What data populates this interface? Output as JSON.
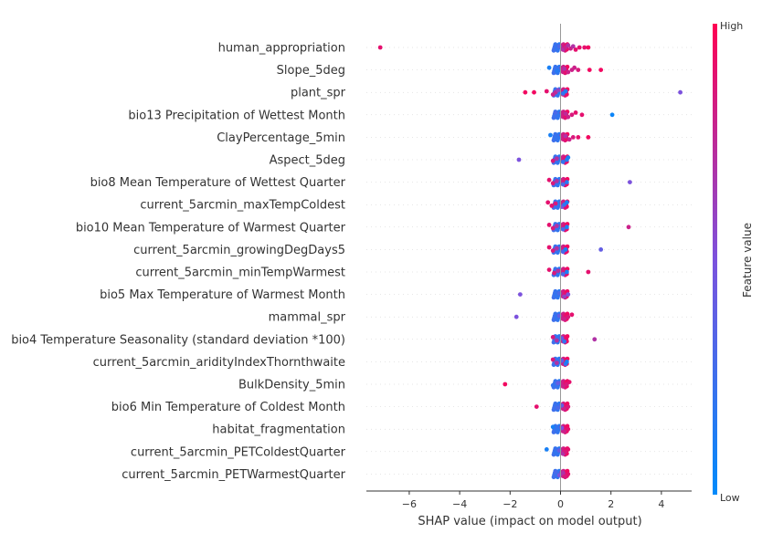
{
  "chart_data": {
    "type": "scatter",
    "subtype": "shap-beeswarm",
    "xlabel": "SHAP value (impact on model output)",
    "xlim": [
      -7.7,
      5.2
    ],
    "xticks": [
      -6,
      -4,
      -2,
      0,
      2,
      4
    ],
    "xtick_labels": [
      "−6",
      "−4",
      "−2",
      "0",
      "2",
      "4"
    ],
    "grid": false,
    "colorbar": {
      "label": "Feature value",
      "high_label": "High",
      "low_label": "Low",
      "low_color": "#008bfb",
      "mid_color": "#7c52dd",
      "high_color": "#ff0052",
      "placement": "right"
    },
    "features": [
      {
        "name": "human_appropriation",
        "points": [
          [
            -7.15,
            0.9
          ],
          [
            -0.15,
            0.2
          ],
          [
            -0.05,
            0.3
          ],
          [
            0.1,
            0.7
          ],
          [
            0.2,
            0.8
          ],
          [
            0.3,
            0.7
          ],
          [
            0.4,
            0.8
          ],
          [
            0.5,
            0.7
          ],
          [
            0.6,
            0.9
          ],
          [
            0.75,
            0.9
          ],
          [
            0.95,
            0.9
          ],
          [
            1.1,
            0.95
          ]
        ]
      },
      {
        "name": "Slope_5deg",
        "points": [
          [
            -0.45,
            0.1
          ],
          [
            -0.15,
            0.15
          ],
          [
            0.15,
            0.7
          ],
          [
            0.3,
            0.8
          ],
          [
            0.45,
            0.8
          ],
          [
            0.55,
            0.8
          ],
          [
            0.7,
            0.85
          ],
          [
            1.15,
            0.95
          ],
          [
            1.6,
            0.95
          ]
        ]
      },
      {
        "name": "plant_spr",
        "points": [
          [
            -1.4,
            0.95
          ],
          [
            -1.05,
            0.95
          ],
          [
            -0.55,
            0.9
          ],
          [
            -0.3,
            0.8
          ],
          [
            -0.2,
            0.75
          ],
          [
            -0.1,
            0.6
          ],
          [
            0.1,
            0.2
          ],
          [
            0.2,
            0.15
          ],
          [
            4.75,
            0.5
          ]
        ]
      },
      {
        "name": "bio13 Precipitation of Wettest Month",
        "points": [
          [
            -0.2,
            0.3
          ],
          [
            -0.1,
            0.2
          ],
          [
            0.2,
            0.75
          ],
          [
            0.3,
            0.8
          ],
          [
            0.45,
            0.85
          ],
          [
            0.6,
            0.9
          ],
          [
            0.85,
            0.9
          ],
          [
            2.05,
            0.05
          ]
        ]
      },
      {
        "name": "ClayPercentage_5min",
        "points": [
          [
            -0.4,
            0.1
          ],
          [
            -0.2,
            0.2
          ],
          [
            0.2,
            0.7
          ],
          [
            0.35,
            0.8
          ],
          [
            0.5,
            0.85
          ],
          [
            0.7,
            0.9
          ],
          [
            1.1,
            0.95
          ]
        ]
      },
      {
        "name": "Aspect_5deg",
        "points": [
          [
            -1.65,
            0.5
          ],
          [
            -0.3,
            0.85
          ],
          [
            -0.15,
            0.7
          ],
          [
            0.1,
            0.2
          ],
          [
            0.25,
            0.15
          ],
          [
            0.3,
            0.1
          ]
        ]
      },
      {
        "name": "bio8 Mean Temperature of Wettest Quarter",
        "points": [
          [
            -0.45,
            0.9
          ],
          [
            -0.3,
            0.85
          ],
          [
            -0.15,
            0.7
          ],
          [
            0.1,
            0.3
          ],
          [
            0.25,
            0.15
          ],
          [
            2.75,
            0.5
          ]
        ]
      },
      {
        "name": "current_5arcmin_maxTempColdest",
        "points": [
          [
            -0.5,
            0.9
          ],
          [
            -0.35,
            0.9
          ],
          [
            -0.2,
            0.85
          ],
          [
            0.05,
            0.5
          ],
          [
            0.15,
            0.2
          ],
          [
            0.25,
            0.1
          ]
        ]
      },
      {
        "name": "bio10 Mean Temperature of Warmest Quarter",
        "points": [
          [
            -0.45,
            0.9
          ],
          [
            -0.3,
            0.85
          ],
          [
            -0.15,
            0.7
          ],
          [
            0.1,
            0.3
          ],
          [
            0.25,
            0.1
          ],
          [
            2.7,
            0.8
          ]
        ]
      },
      {
        "name": "current_5arcmin_growingDegDays5",
        "points": [
          [
            -0.45,
            0.9
          ],
          [
            -0.3,
            0.85
          ],
          [
            -0.15,
            0.7
          ],
          [
            0.1,
            0.3
          ],
          [
            0.2,
            0.1
          ],
          [
            1.6,
            0.4
          ]
        ]
      },
      {
        "name": "current_5arcmin_minTempWarmest",
        "points": [
          [
            -0.45,
            0.9
          ],
          [
            -0.25,
            0.85
          ],
          [
            -0.1,
            0.7
          ],
          [
            0.1,
            0.3
          ],
          [
            0.25,
            0.1
          ],
          [
            1.1,
            0.9
          ]
        ]
      },
      {
        "name": "bio5 Max Temperature of Warmest Month",
        "points": [
          [
            -1.6,
            0.5
          ],
          [
            -0.2,
            0.2
          ],
          [
            -0.05,
            0.3
          ],
          [
            0.15,
            0.6
          ],
          [
            0.3,
            0.5
          ]
        ]
      },
      {
        "name": "mammal_spr",
        "points": [
          [
            -1.75,
            0.5
          ],
          [
            -0.15,
            0.2
          ],
          [
            -0.05,
            0.4
          ],
          [
            0.15,
            0.8
          ],
          [
            0.3,
            0.85
          ],
          [
            0.45,
            0.9
          ]
        ]
      },
      {
        "name": "bio4 Temperature Seasonality (standard deviation *100)",
        "points": [
          [
            -0.3,
            0.85
          ],
          [
            -0.15,
            0.7
          ],
          [
            0.05,
            0.4
          ],
          [
            0.15,
            0.2
          ],
          [
            1.35,
            0.7
          ]
        ]
      },
      {
        "name": "current_5arcmin_aridityIndexThornthwaite",
        "points": [
          [
            -0.3,
            0.85
          ],
          [
            -0.15,
            0.7
          ],
          [
            0.05,
            0.4
          ],
          [
            0.2,
            0.2
          ],
          [
            0.25,
            0.1
          ]
        ]
      },
      {
        "name": "BulkDensity_5min",
        "points": [
          [
            -2.2,
            0.95
          ],
          [
            -0.3,
            0.2
          ],
          [
            -0.1,
            0.4
          ],
          [
            0.1,
            0.8
          ],
          [
            0.25,
            0.85
          ],
          [
            0.35,
            0.9
          ]
        ]
      },
      {
        "name": "bio6 Min Temperature of Coldest Month",
        "points": [
          [
            -0.95,
            0.9
          ],
          [
            -0.1,
            0.3
          ],
          [
            0.05,
            0.4
          ],
          [
            0.15,
            0.8
          ],
          [
            0.3,
            0.85
          ]
        ]
      },
      {
        "name": "habitat_fragmentation",
        "points": [
          [
            -0.3,
            0.1
          ],
          [
            -0.15,
            0.2
          ],
          [
            0.05,
            0.5
          ],
          [
            0.15,
            0.8
          ],
          [
            0.3,
            0.9
          ]
        ]
      },
      {
        "name": "current_5arcmin_PETColdestQuarter",
        "points": [
          [
            -0.55,
            0.1
          ],
          [
            -0.2,
            0.2
          ],
          [
            -0.05,
            0.4
          ],
          [
            0.1,
            0.7
          ],
          [
            0.2,
            0.85
          ],
          [
            0.3,
            0.9
          ]
        ]
      },
      {
        "name": "current_5arcmin_PETWarmestQuarter",
        "points": [
          [
            -0.2,
            0.3
          ],
          [
            -0.05,
            0.5
          ],
          [
            0.1,
            0.7
          ],
          [
            0.2,
            0.85
          ],
          [
            0.3,
            0.9
          ]
        ]
      }
    ]
  }
}
